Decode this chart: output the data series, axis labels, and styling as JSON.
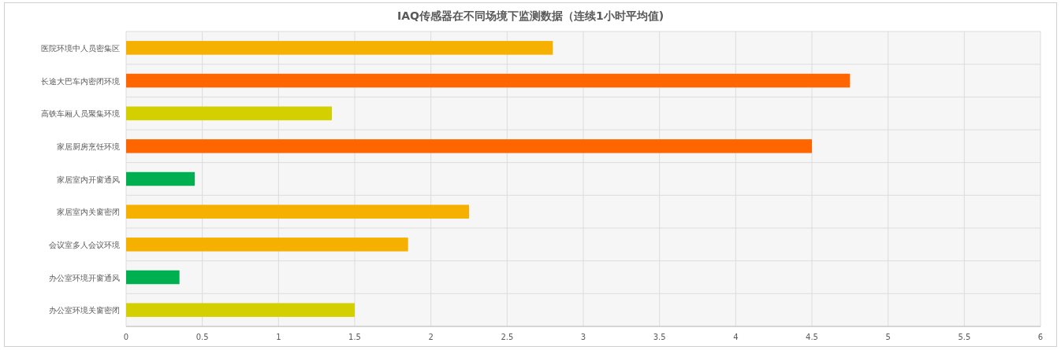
{
  "chart_data": {
    "type": "bar",
    "orientation": "horizontal",
    "title": "IAQ传感器在不同场境下监测数据（连续1小时平均值)",
    "categories": [
      "医院环境中人员密集区",
      "长途大巴车内密闭环境",
      "高铁车厢人员聚集环境",
      "家居厨房烹饪环境",
      "家居室内开窗通风",
      "家居室内关窗密闭",
      "会议室多人会议环境",
      "办公室环境开窗通风",
      "办公室环境关窗密闭"
    ],
    "values": [
      2.8,
      4.75,
      1.35,
      4.5,
      0.45,
      2.25,
      1.85,
      0.35,
      1.5
    ],
    "colors": [
      "#f5b000",
      "#ff6600",
      "#d4d000",
      "#ff6600",
      "#00b050",
      "#f5b000",
      "#f5b000",
      "#00b050",
      "#d4d000"
    ],
    "xlim": [
      0,
      6
    ],
    "xticks": [
      0,
      0.5,
      1,
      1.5,
      2,
      2.5,
      3,
      3.5,
      4,
      4.5,
      5,
      5.5,
      6
    ],
    "grid": true
  }
}
